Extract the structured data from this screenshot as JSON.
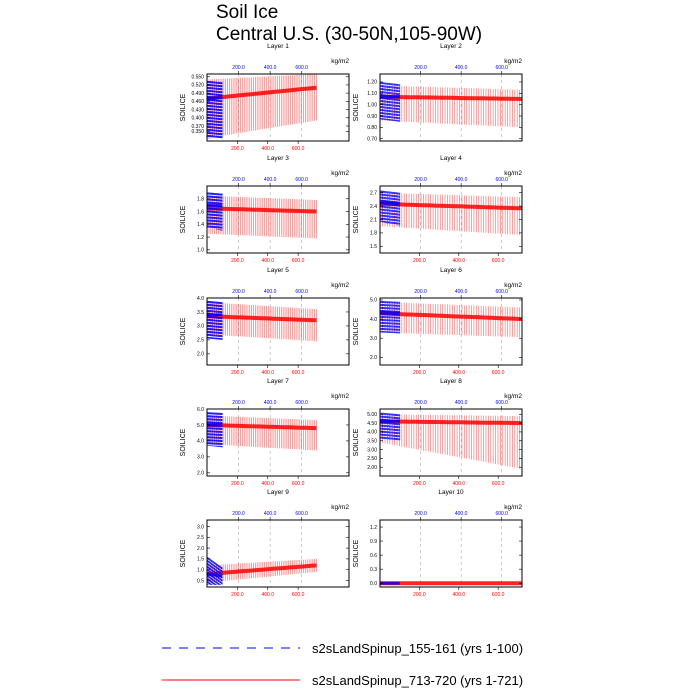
{
  "title_line1": "Soil Ice",
  "title_line2": "Central U.S. (30-50N,105-90W)",
  "unit_label": "kg/m2",
  "ylabel": "SOILICE",
  "colors": {
    "blue_series": "#0000ff",
    "red_series": "#ff0000",
    "grid": "#999999",
    "frame": "#000000"
  },
  "legend": [
    {
      "label": "s2sLandSpinup_155-161 (yrs 1-100)",
      "style": "dashed",
      "color": "#0000ff"
    },
    {
      "label": "s2sLandSpinup_713-720 (yrs 1-721)",
      "style": "solid",
      "color": "#ff0000"
    }
  ],
  "chart_data": [
    {
      "type": "line",
      "title": "Layer 1",
      "ylim": [
        0.315,
        0.56
      ],
      "yticks": [
        "0.550",
        "0.520",
        "0.490",
        "0.460",
        "0.430",
        "0.400",
        "0.370",
        "0.350"
      ],
      "ytick_values": [
        0.55,
        0.52,
        0.49,
        0.46,
        0.43,
        0.4,
        0.37,
        0.35
      ],
      "top_xlim": [
        0,
        900
      ],
      "top_xticks": [
        "200.0",
        "400.0",
        "600.0"
      ],
      "top_xtick_values": [
        200,
        400,
        600
      ],
      "bottom_xlim": [
        0,
        935
      ],
      "bottom_xticks": [
        "200.0",
        "400.0",
        "600.0"
      ],
      "bottom_xtick_values": [
        200,
        400,
        600
      ],
      "blue": {
        "years": [
          1,
          100
        ],
        "max": [
          0.535,
          0.53
        ],
        "min": [
          0.325,
          0.325
        ],
        "core": [
          0.47,
          0.475
        ]
      },
      "red": {
        "years": [
          1,
          721
        ],
        "max": [
          0.54,
          0.56
        ],
        "min": [
          0.325,
          0.39
        ],
        "core": [
          0.47,
          0.51
        ]
      }
    },
    {
      "type": "line",
      "title": "Layer 2",
      "ylim": [
        0.68,
        1.27
      ],
      "yticks": [
        "1.20",
        "1.10",
        "1.00",
        "0.90",
        "0.80",
        "0.70"
      ],
      "ytick_values": [
        1.2,
        1.1,
        1.0,
        0.9,
        0.8,
        0.7
      ],
      "top_xlim": [
        0,
        700
      ],
      "top_xticks": [
        "200.0",
        "400.0",
        "600.0"
      ],
      "top_xtick_values": [
        200,
        400,
        600
      ],
      "bottom_xlim": [
        0,
        721
      ],
      "bottom_xticks": [],
      "bottom_xtick_values": [],
      "blue": {
        "years": [
          1,
          100
        ],
        "max": [
          1.2,
          1.18
        ],
        "min": [
          0.87,
          0.85
        ],
        "core": [
          1.07,
          1.07
        ]
      },
      "red": {
        "years": [
          1,
          721
        ],
        "max": [
          1.17,
          1.13
        ],
        "min": [
          0.86,
          0.8
        ],
        "core": [
          1.07,
          1.05
        ]
      }
    },
    {
      "type": "line",
      "title": "Layer 3",
      "ylim": [
        0.95,
        2.0
      ],
      "yticks": [
        "1.8",
        "1.6",
        "1.4",
        "1.2",
        "1.0"
      ],
      "ytick_values": [
        1.8,
        1.6,
        1.4,
        1.2,
        1.0
      ],
      "top_xlim": [
        0,
        900
      ],
      "top_xticks": [
        "200.0",
        "400.0",
        "600.0"
      ],
      "top_xtick_values": [
        200,
        400,
        600
      ],
      "bottom_xlim": [
        0,
        935
      ],
      "bottom_xticks": [
        "200.0",
        "400.0",
        "600.0"
      ],
      "bottom_xtick_values": [
        200,
        400,
        600
      ],
      "blue": {
        "years": [
          1,
          100
        ],
        "max": [
          1.9,
          1.88
        ],
        "min": [
          1.35,
          1.3
        ],
        "core": [
          1.7,
          1.7
        ]
      },
      "red": {
        "years": [
          1,
          721
        ],
        "max": [
          1.85,
          1.78
        ],
        "min": [
          1.25,
          1.18
        ],
        "core": [
          1.65,
          1.6
        ]
      }
    },
    {
      "type": "line",
      "title": "Layer 4",
      "ylim": [
        1.35,
        2.85
      ],
      "yticks": [
        "2.7",
        "2.4",
        "2.1",
        "1.8",
        "1.5"
      ],
      "ytick_values": [
        2.7,
        2.4,
        2.1,
        1.8,
        1.5
      ],
      "top_xlim": [
        0,
        700
      ],
      "top_xticks": [
        "200.0",
        "400.0",
        "600.0"
      ],
      "top_xtick_values": [
        200,
        400,
        600
      ],
      "bottom_xlim": [
        0,
        721
      ],
      "bottom_xticks": [
        "200.0",
        "400.0",
        "600.0"
      ],
      "bottom_xtick_values": [
        200,
        400,
        600
      ],
      "blue": {
        "years": [
          1,
          100
        ],
        "max": [
          2.75,
          2.7
        ],
        "min": [
          2.05,
          1.95
        ],
        "core": [
          2.5,
          2.45
        ]
      },
      "red": {
        "years": [
          1,
          721
        ],
        "max": [
          2.7,
          2.6
        ],
        "min": [
          1.95,
          1.75
        ],
        "core": [
          2.45,
          2.35
        ]
      }
    },
    {
      "type": "line",
      "title": "Layer 5",
      "ylim": [
        1.6,
        4.0
      ],
      "yticks": [
        "4.0",
        "3.5",
        "3.0",
        "2.5",
        "2.0"
      ],
      "ytick_values": [
        4.0,
        3.5,
        3.0,
        2.5,
        2.0
      ],
      "top_xlim": [
        0,
        900
      ],
      "top_xticks": [
        "200.0",
        "400.0",
        "600.0"
      ],
      "top_xtick_values": [
        200,
        400,
        600
      ],
      "bottom_xlim": [
        0,
        935
      ],
      "bottom_xticks": [
        "200.0",
        "400.0",
        "600.0"
      ],
      "bottom_xtick_values": [
        200,
        400,
        600
      ],
      "blue": {
        "years": [
          1,
          100
        ],
        "max": [
          3.9,
          3.85
        ],
        "min": [
          2.55,
          2.5
        ],
        "core": [
          3.4,
          3.4
        ]
      },
      "red": {
        "years": [
          1,
          721
        ],
        "max": [
          3.85,
          3.6
        ],
        "min": [
          2.7,
          2.45
        ],
        "core": [
          3.35,
          3.2
        ]
      }
    },
    {
      "type": "line",
      "title": "Layer 6",
      "ylim": [
        1.6,
        5.1
      ],
      "yticks": [
        "5.0",
        "4.0",
        "3.0",
        "2.0"
      ],
      "ytick_values": [
        5.0,
        4.0,
        3.0,
        2.0
      ],
      "top_xlim": [
        0,
        700
      ],
      "top_xticks": [
        "200.0",
        "400.0",
        "600.0"
      ],
      "top_xtick_values": [
        200,
        400,
        600
      ],
      "bottom_xlim": [
        0,
        721
      ],
      "bottom_xticks": [
        "200.0",
        "400.0",
        "600.0"
      ],
      "bottom_xtick_values": [
        200,
        400,
        600
      ],
      "blue": {
        "years": [
          1,
          100
        ],
        "max": [
          4.95,
          4.9
        ],
        "min": [
          3.3,
          3.25
        ],
        "core": [
          4.35,
          4.3
        ]
      },
      "red": {
        "years": [
          1,
          721
        ],
        "max": [
          4.9,
          4.6
        ],
        "min": [
          3.3,
          3.05
        ],
        "core": [
          4.3,
          4.0
        ]
      }
    },
    {
      "type": "line",
      "title": "Layer 7",
      "ylim": [
        1.8,
        6.0
      ],
      "yticks": [
        "6.0",
        "5.0",
        "4.0",
        "3.0",
        "2.0"
      ],
      "ytick_values": [
        6.0,
        5.0,
        4.0,
        3.0,
        2.0
      ],
      "top_xlim": [
        0,
        900
      ],
      "top_xticks": [
        "200.0",
        "400.0",
        "600.0"
      ],
      "top_xtick_values": [
        200,
        400,
        600
      ],
      "bottom_xlim": [
        0,
        935
      ],
      "bottom_xticks": [
        "200.0",
        "400.0",
        "600.0"
      ],
      "bottom_xtick_values": [
        200,
        400,
        600
      ],
      "blue": {
        "years": [
          1,
          100
        ],
        "max": [
          5.8,
          5.75
        ],
        "min": [
          3.7,
          3.6
        ],
        "core": [
          5.0,
          5.0
        ]
      },
      "red": {
        "years": [
          1,
          721
        ],
        "max": [
          5.6,
          5.3
        ],
        "min": [
          3.8,
          3.4
        ],
        "core": [
          5.0,
          4.8
        ]
      }
    },
    {
      "type": "line",
      "title": "Layer 8",
      "ylim": [
        1.5,
        5.3
      ],
      "yticks": [
        "5.00",
        "4.50",
        "4.00",
        "3.50",
        "3.00",
        "2.50",
        "2.00"
      ],
      "ytick_values": [
        5.0,
        4.5,
        4.0,
        3.5,
        3.0,
        2.5,
        2.0
      ],
      "top_xlim": [
        0,
        700
      ],
      "top_xticks": [
        "200.0",
        "400.0",
        "600.0"
      ],
      "top_xtick_values": [
        200,
        400,
        600
      ],
      "bottom_xlim": [
        0,
        721
      ],
      "bottom_xticks": [
        "200.0",
        "400.0",
        "600.0"
      ],
      "bottom_xtick_values": [
        200,
        400,
        600
      ],
      "blue": {
        "years": [
          1,
          100
        ],
        "max": [
          5.1,
          5.0
        ],
        "min": [
          3.6,
          3.5
        ],
        "core": [
          4.6,
          4.6
        ]
      },
      "red": {
        "years": [
          1,
          721
        ],
        "max": [
          5.0,
          4.9
        ],
        "min": [
          3.4,
          1.9
        ],
        "core": [
          4.6,
          4.5
        ]
      }
    },
    {
      "type": "line",
      "title": "Layer 9",
      "ylim": [
        0.2,
        3.3
      ],
      "yticks": [
        "3.0",
        "2.5",
        "2.0",
        "1.5",
        "1.0",
        "0.5"
      ],
      "ytick_values": [
        3.0,
        2.5,
        2.0,
        1.5,
        1.0,
        0.5
      ],
      "top_xlim": [
        0,
        900
      ],
      "top_xticks": [
        "200.0",
        "400.0",
        "600.0"
      ],
      "top_xtick_values": [
        200,
        400,
        600
      ],
      "bottom_xlim": [
        0,
        935
      ],
      "bottom_xticks": [
        "200.0",
        "400.0",
        "600.0"
      ],
      "bottom_xtick_values": [
        200,
        400,
        600
      ],
      "blue": {
        "years": [
          1,
          100
        ],
        "max": [
          1.6,
          1.1
        ],
        "min": [
          0.3,
          0.3
        ],
        "core": [
          0.8,
          0.7
        ]
      },
      "red": {
        "years": [
          1,
          721
        ],
        "max": [
          1.2,
          1.5
        ],
        "min": [
          0.4,
          0.9
        ],
        "core": [
          0.8,
          1.2
        ]
      }
    },
    {
      "type": "line",
      "title": "Layer 10",
      "ylim": [
        -0.08,
        1.35
      ],
      "yticks": [
        "1.2",
        "0.9",
        "0.6",
        "0.3",
        "0.0"
      ],
      "ytick_values": [
        1.2,
        0.9,
        0.6,
        0.3,
        0.0
      ],
      "top_xlim": [
        0,
        700
      ],
      "top_xticks": [
        "200.0",
        "400.0",
        "600.0"
      ],
      "top_xtick_values": [
        200,
        400,
        600
      ],
      "bottom_xlim": [
        0,
        721
      ],
      "bottom_xticks": [
        "200.0",
        "400.0",
        "600.0"
      ],
      "bottom_xtick_values": [
        200,
        400,
        600
      ],
      "blue": {
        "years": [
          1,
          100
        ],
        "max": [
          0.0,
          0.0
        ],
        "min": [
          0.0,
          0.0
        ],
        "core": [
          0.0,
          0.0
        ]
      },
      "red": {
        "years": [
          1,
          721
        ],
        "max": [
          0.0,
          0.0
        ],
        "min": [
          0.0,
          0.0
        ],
        "core": [
          0.0,
          0.0
        ]
      }
    }
  ]
}
